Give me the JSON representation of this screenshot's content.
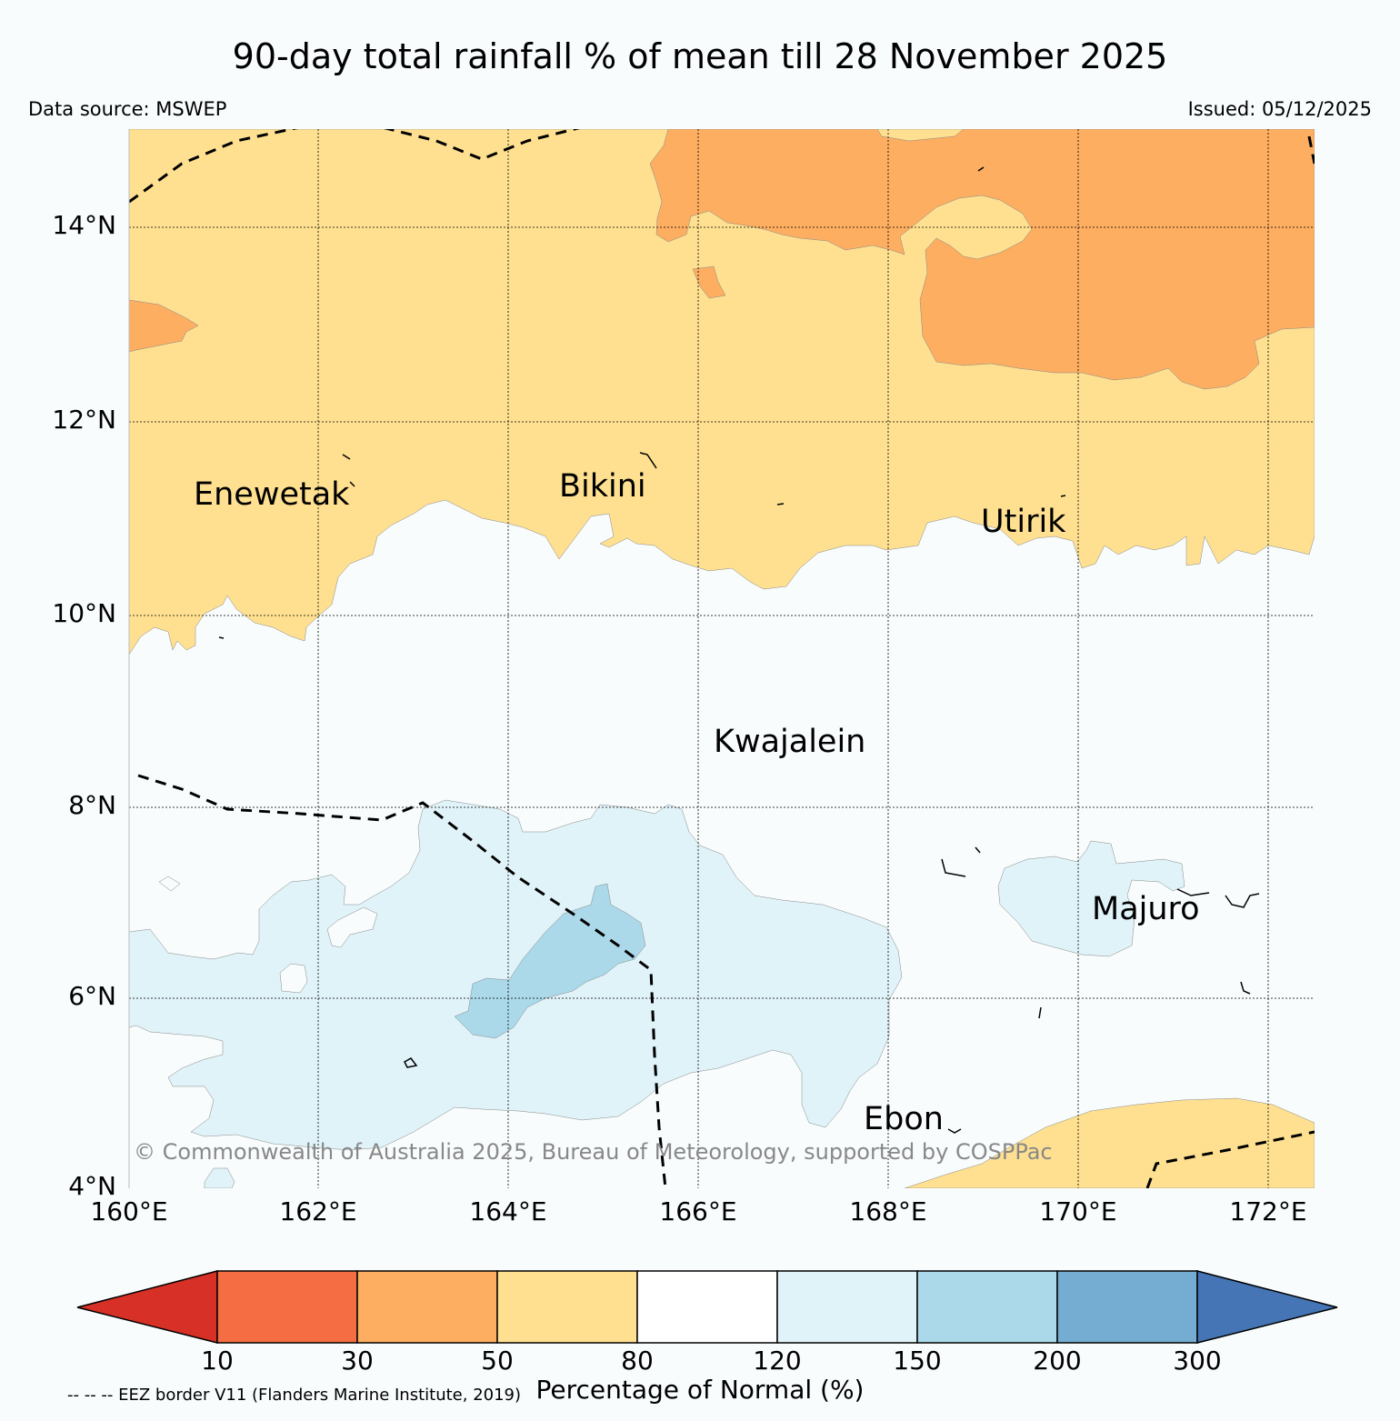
{
  "title": "90-day total rainfall % of mean till 28 November 2025",
  "data_source": "Data source: MSWEP",
  "issued": "Issued: 05/12/2025",
  "copyright": "© Commonwealth of Australia 2025, Bureau of Meteorology, supported by COSPPac",
  "eez_note": "-- -- -- EEZ border V11 (Flanders Marine Institute, 2019)",
  "map": {
    "lon_range": [
      160,
      172.5
    ],
    "lat_range": [
      4,
      15
    ],
    "lat_ticks": [
      "14°N",
      "12°N",
      "10°N",
      "8°N",
      "6°N",
      "4°N"
    ],
    "lon_ticks": [
      "160°E",
      "162°E",
      "164°E",
      "166°E",
      "168°E",
      "170°E",
      "172°E"
    ],
    "places": [
      {
        "name": "Enewetak"
      },
      {
        "name": "Bikini"
      },
      {
        "name": "Utirik"
      },
      {
        "name": "Kwajalein"
      },
      {
        "name": "Majuro"
      },
      {
        "name": "Ebon"
      }
    ]
  },
  "colorbar": {
    "label": "Percentage of Normal (%)",
    "ticks": [
      "10",
      "30",
      "50",
      "80",
      "120",
      "150",
      "200",
      "300"
    ],
    "colors": {
      "below_10": "#d73027",
      "10_30": "#f46d43",
      "30_50": "#fdae61",
      "50_80": "#fee090",
      "80_120": "#ffffff",
      "120_150": "#e0f3f8",
      "150_200": "#abd9e9",
      "200_300": "#74add1",
      "above_300": "#4575b4"
    }
  }
}
